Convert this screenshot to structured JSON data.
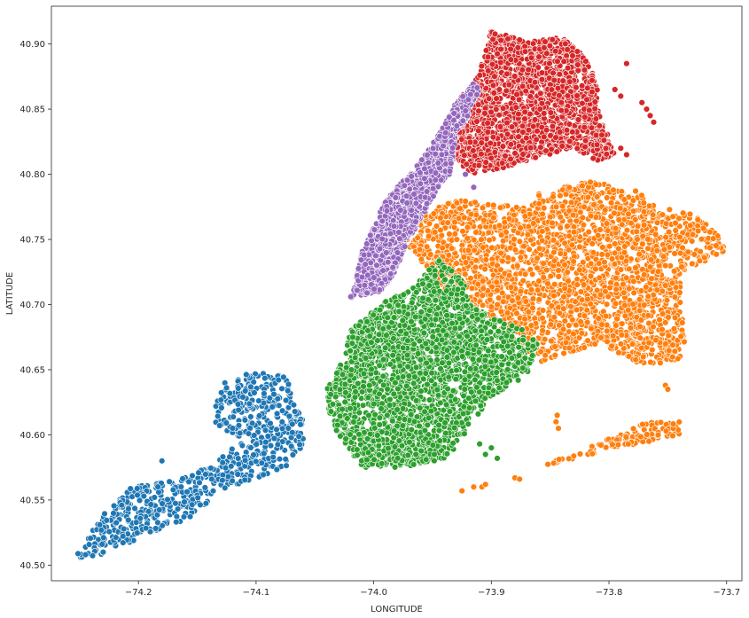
{
  "chart_data": {
    "type": "scatter",
    "title": "",
    "xlabel": "LONGITUDE",
    "ylabel": "LATITUDE",
    "xlim": [
      -74.274,
      -73.687
    ],
    "ylim": [
      40.488,
      40.929
    ],
    "xticks": [
      -74.2,
      -74.1,
      -74.0,
      -73.9,
      -73.8,
      -73.7
    ],
    "xtick_labels": [
      "−74.2",
      "−74.1",
      "−74.0",
      "−73.9",
      "−73.8",
      "−73.7"
    ],
    "yticks": [
      40.5,
      40.55,
      40.6,
      40.65,
      40.7,
      40.75,
      40.8,
      40.85,
      40.9
    ],
    "ytick_labels": [
      "40.50",
      "40.55",
      "40.60",
      "40.65",
      "40.70",
      "40.75",
      "40.80",
      "40.85",
      "40.90"
    ],
    "grid": false,
    "legend": "none",
    "series": [
      {
        "color": "#1f77b4",
        "regions": [
          [
            [
              -74.255,
              40.505
            ],
            [
              -74.235,
              40.505
            ],
            [
              -74.19,
              40.525
            ],
            [
              -74.155,
              40.535
            ],
            [
              -74.125,
              40.56
            ],
            [
              -74.1,
              40.565
            ],
            [
              -74.075,
              40.575
            ],
            [
              -74.06,
              40.59
            ],
            [
              -74.06,
              40.61
            ],
            [
              -74.075,
              40.645
            ],
            [
              -74.095,
              40.648
            ],
            [
              -74.125,
              40.645
            ],
            [
              -74.135,
              40.63
            ],
            [
              -74.135,
              40.61
            ],
            [
              -74.115,
              40.595
            ],
            [
              -74.14,
              40.575
            ],
            [
              -74.17,
              40.565
            ],
            [
              -74.205,
              40.56
            ],
            [
              -74.225,
              40.545
            ],
            [
              -74.245,
              40.52
            ]
          ]
        ],
        "extra_points": [
          [
            -74.18,
            40.58
          ],
          [
            -74.23,
            40.51
          ],
          [
            -74.245,
            40.508
          ]
        ],
        "count": 700
      },
      {
        "color": "#ff7f0e",
        "regions": [
          [
            [
              -73.975,
              40.745
            ],
            [
              -73.96,
              40.77
            ],
            [
              -73.93,
              40.78
            ],
            [
              -73.87,
              40.775
            ],
            [
              -73.86,
              40.785
            ],
            [
              -73.82,
              40.795
            ],
            [
              -73.78,
              40.79
            ],
            [
              -73.76,
              40.775
            ],
            [
              -73.73,
              40.77
            ],
            [
              -73.705,
              40.755
            ],
            [
              -73.7,
              40.74
            ],
            [
              -73.74,
              40.725
            ],
            [
              -73.735,
              40.66
            ],
            [
              -73.745,
              40.655
            ],
            [
              -73.78,
              40.655
            ],
            [
              -73.805,
              40.67
            ],
            [
              -73.845,
              40.66
            ],
            [
              -73.86,
              40.655
            ],
            [
              -73.885,
              40.675
            ],
            [
              -73.9,
              40.69
            ],
            [
              -73.93,
              40.7
            ],
            [
              -73.955,
              40.73
            ]
          ],
          [
            [
              -73.865,
              40.575
            ],
            [
              -73.83,
              40.58
            ],
            [
              -73.8,
              40.59
            ],
            [
              -73.76,
              40.595
            ],
            [
              -73.74,
              40.6
            ],
            [
              -73.74,
              40.61
            ],
            [
              -73.77,
              40.61
            ],
            [
              -73.8,
              40.597
            ],
            [
              -73.83,
              40.585
            ]
          ]
        ],
        "extra_points": [
          [
            -73.925,
            40.557
          ],
          [
            -73.915,
            40.56
          ],
          [
            -73.908,
            40.56
          ],
          [
            -73.905,
            40.562
          ],
          [
            -73.88,
            40.567
          ],
          [
            -73.876,
            40.566
          ],
          [
            -73.752,
            40.638
          ],
          [
            -73.75,
            40.635
          ],
          [
            -73.845,
            40.61
          ],
          [
            -73.843,
            40.605
          ],
          [
            -73.844,
            40.615
          ]
        ],
        "count": 2600
      },
      {
        "color": "#2ca02c",
        "regions": [
          [
            [
              -74.02,
              40.68
            ],
            [
              -74.0,
              40.695
            ],
            [
              -73.99,
              40.705
            ],
            [
              -73.97,
              40.71
            ],
            [
              -73.96,
              40.72
            ],
            [
              -73.945,
              40.735
            ],
            [
              -73.925,
              40.72
            ],
            [
              -73.915,
              40.7
            ],
            [
              -73.9,
              40.69
            ],
            [
              -73.87,
              40.68
            ],
            [
              -73.86,
              40.67
            ],
            [
              -73.87,
              40.645
            ],
            [
              -73.9,
              40.63
            ],
            [
              -73.93,
              40.59
            ],
            [
              -73.94,
              40.58
            ],
            [
              -73.98,
              40.575
            ],
            [
              -74.01,
              40.575
            ],
            [
              -74.03,
              40.6
            ],
            [
              -74.04,
              40.62
            ],
            [
              -74.04,
              40.635
            ],
            [
              -74.025,
              40.66
            ]
          ]
        ],
        "extra_points": [
          [
            -73.905,
            40.585
          ],
          [
            -73.9,
            40.59
          ],
          [
            -73.895,
            40.582
          ],
          [
            -73.91,
            40.593
          ],
          [
            -74.005,
            40.68
          ]
        ],
        "count": 2400
      },
      {
        "color": "#d62728",
        "regions": [
          [
            [
              -73.93,
              40.81
            ],
            [
              -73.935,
              40.835
            ],
            [
              -73.93,
              40.855
            ],
            [
              -73.915,
              40.87
            ],
            [
              -73.91,
              40.88
            ],
            [
              -73.905,
              40.895
            ],
            [
              -73.9,
              40.91
            ],
            [
              -73.87,
              40.902
            ],
            [
              -73.84,
              40.905
            ],
            [
              -73.82,
              40.89
            ],
            [
              -73.81,
              40.87
            ],
            [
              -73.81,
              40.85
            ],
            [
              -73.8,
              40.83
            ],
            [
              -73.795,
              40.815
            ],
            [
              -73.81,
              40.81
            ],
            [
              -73.83,
              40.82
            ],
            [
              -73.85,
              40.815
            ],
            [
              -73.87,
              40.81
            ],
            [
              -73.89,
              40.805
            ],
            [
              -73.915,
              40.8
            ]
          ]
        ],
        "extra_points": [
          [
            -73.785,
            40.885
          ],
          [
            -73.795,
            40.865
          ],
          [
            -73.79,
            40.86
          ],
          [
            -73.772,
            40.855
          ],
          [
            -73.768,
            40.85
          ],
          [
            -73.765,
            40.845
          ],
          [
            -73.762,
            40.84
          ],
          [
            -73.79,
            40.82
          ],
          [
            -73.785,
            40.815
          ]
        ],
        "count": 1900
      },
      {
        "color": "#9467bd",
        "regions": [
          [
            [
              -74.02,
              40.705
            ],
            [
              -74.015,
              40.72
            ],
            [
              -74.01,
              40.74
            ],
            [
              -74.0,
              40.76
            ],
            [
              -73.99,
              40.78
            ],
            [
              -73.96,
              40.81
            ],
            [
              -73.945,
              40.83
            ],
            [
              -73.93,
              40.855
            ],
            [
              -73.915,
              40.87
            ],
            [
              -73.91,
              40.865
            ],
            [
              -73.92,
              40.845
            ],
            [
              -73.93,
              40.83
            ],
            [
              -73.935,
              40.8
            ],
            [
              -73.945,
              40.79
            ],
            [
              -73.97,
              40.75
            ],
            [
              -73.985,
              40.72
            ],
            [
              -73.995,
              40.71
            ]
          ]
        ],
        "extra_points": [
          [
            -73.915,
            40.79
          ],
          [
            -73.922,
            40.8
          ]
        ],
        "count": 1500
      }
    ]
  }
}
